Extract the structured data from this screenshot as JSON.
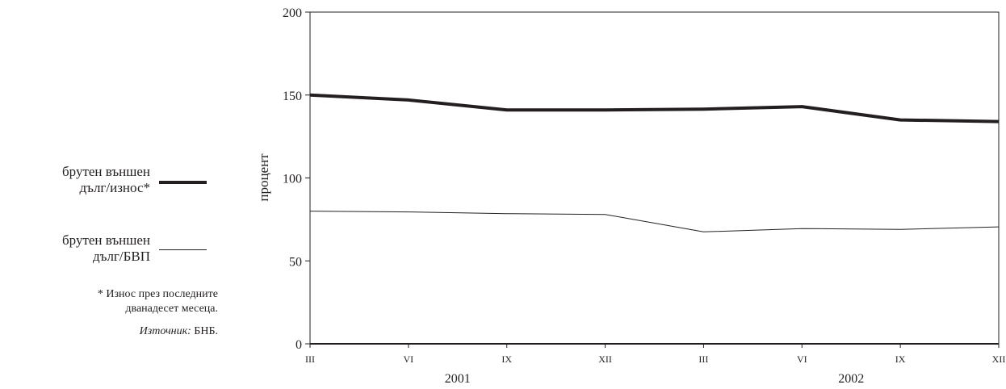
{
  "legend": {
    "items": [
      {
        "line1": "брутен външен",
        "line2": "дълг/износ*"
      },
      {
        "line1": "брутен външен",
        "line2": "дълг/БВП"
      }
    ],
    "footnote_line1": "* Износ през последните",
    "footnote_line2": "дванадесет месеца.",
    "source_label": "Източник:",
    "source_value": " БНБ."
  },
  "chart_data": {
    "type": "line",
    "title": "",
    "xlabel": "",
    "ylabel": "процент",
    "ylim": [
      0,
      200
    ],
    "yticks": [
      0,
      50,
      100,
      150,
      200
    ],
    "categories": [
      "III",
      "VI",
      "IX",
      "XII",
      "III",
      "VI",
      "IX",
      "XII"
    ],
    "year_groups": [
      {
        "label": "2001",
        "from": 0,
        "to": 3
      },
      {
        "label": "2002",
        "from": 4,
        "to": 7
      }
    ],
    "series": [
      {
        "name": "брутен външен дълг/износ*",
        "values": [
          150,
          147,
          141,
          141,
          141.5,
          143,
          135,
          134
        ],
        "style": "thick",
        "color": "#231f20"
      },
      {
        "name": "брутен външен дълг/БВП",
        "values": [
          80,
          79.5,
          78.5,
          78,
          67.5,
          69.5,
          69,
          70.5
        ],
        "style": "thin",
        "color": "#231f20"
      }
    ],
    "grid": false,
    "legend_position": "left"
  }
}
